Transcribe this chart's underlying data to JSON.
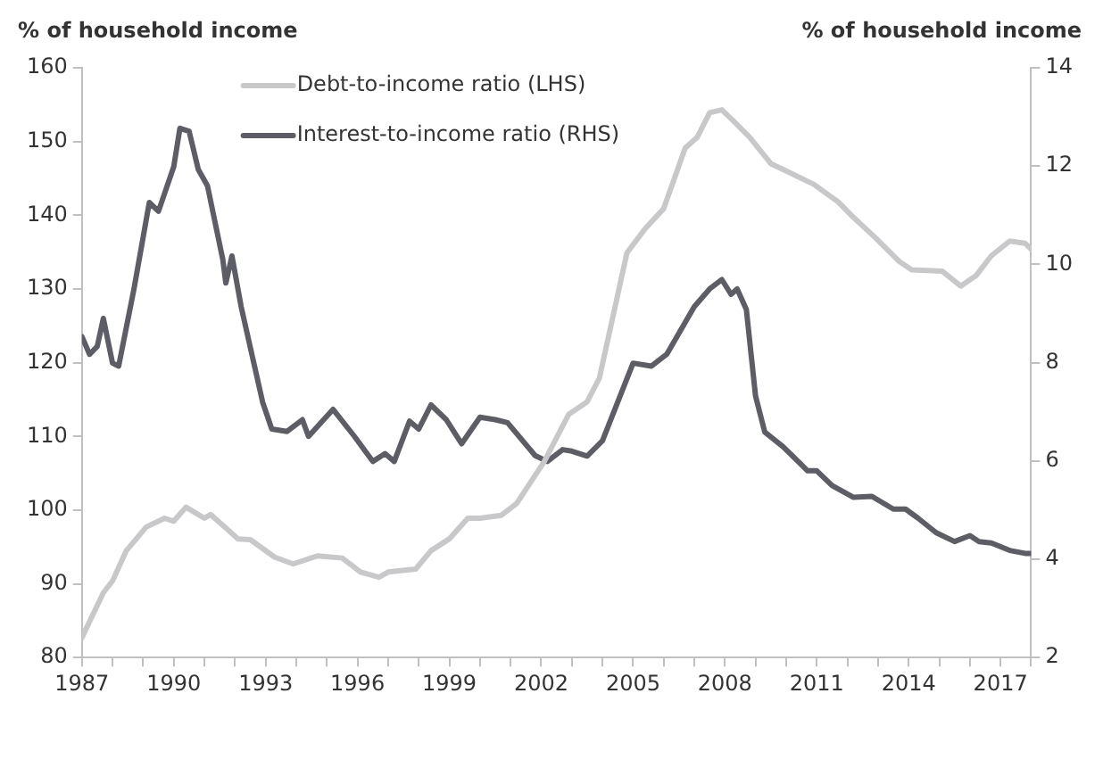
{
  "chart_data": {
    "type": "line",
    "ylabel": "% of household income",
    "y2label": "% of household income",
    "xlim": [
      1987,
      2018
    ],
    "xticks": [
      1987,
      {
        "value": 1988,
        "label": null
      },
      {
        "value": 1989,
        "label": null
      },
      1990,
      {
        "value": 1991,
        "label": null
      },
      {
        "value": 1992,
        "label": null
      },
      1993,
      {
        "value": 1994,
        "label": null
      },
      {
        "value": 1995,
        "label": null
      },
      1996,
      {
        "value": 1997,
        "label": null
      },
      {
        "value": 1998,
        "label": null
      },
      1999,
      {
        "value": 2000,
        "label": null
      },
      {
        "value": 2001,
        "label": null
      },
      2002,
      {
        "value": 2003,
        "label": null
      },
      {
        "value": 2004,
        "label": null
      },
      2005,
      {
        "value": 2006,
        "label": null
      },
      {
        "value": 2007,
        "label": null
      },
      2008,
      {
        "value": 2009,
        "label": null
      },
      {
        "value": 2010,
        "label": null
      },
      2011,
      {
        "value": 2012,
        "label": null
      },
      {
        "value": 2013,
        "label": null
      },
      2014,
      {
        "value": 2015,
        "label": null
      },
      {
        "value": 2016,
        "label": null
      },
      2017,
      {
        "value": 2018,
        "label": null
      }
    ],
    "ylim": [
      80,
      160
    ],
    "yticks": [
      80,
      90,
      100,
      110,
      120,
      130,
      140,
      150,
      160
    ],
    "y2lim": [
      2,
      14
    ],
    "y2ticks": [
      2,
      4,
      6,
      8,
      10,
      12,
      14
    ],
    "grid": false,
    "legend": "top",
    "marker": "none",
    "line_style": "solid",
    "series": [
      {
        "name": "Debt-to-income ratio (LHS)",
        "color": "#c8c8ca",
        "x": [
          1987.0,
          1987.7,
          1988.0,
          1988.45,
          1989.1,
          1989.7,
          1990.0,
          1990.4,
          1991.0,
          1991.2,
          1992.1,
          1992.5,
          1993.3,
          1993.9,
          1994.7,
          1995.5,
          1996.1,
          1996.7,
          1997.0,
          1997.9,
          1998.4,
          1999.0,
          1999.6,
          2000.0,
          2000.7,
          2001.2,
          2002.1,
          2002.9,
          2003.5,
          2003.9,
          2004.8,
          2005.4,
          2006.0,
          2006.7,
          2007.1,
          2007.5,
          2007.9,
          2008.3,
          2008.8,
          2009.5,
          2009.9,
          2010.9,
          2011.7,
          2012.2,
          2012.9,
          2013.7,
          2014.1,
          2015.1,
          2015.7,
          2016.2,
          2016.7,
          2017.3,
          2017.8,
          2018.0
        ],
        "values": [
          82.7,
          88.8,
          90.4,
          94.5,
          97.7,
          98.9,
          98.5,
          100.4,
          98.9,
          99.4,
          96.1,
          96,
          93.6,
          92.7,
          93.8,
          93.5,
          91.6,
          90.9,
          91.6,
          92,
          94.5,
          96.1,
          98.9,
          98.9,
          99.3,
          100.9,
          106.6,
          113,
          114.7,
          117.9,
          134.9,
          138.2,
          140.9,
          149.1,
          150.6,
          153.9,
          154.3,
          152.7,
          150.6,
          147,
          146.2,
          144.2,
          141.8,
          139.7,
          137,
          133.7,
          132.6,
          132.4,
          130.4,
          131.8,
          134.5,
          136.5,
          136.2,
          135.4
        ]
      },
      {
        "name": "Interest-to-income ratio (RHS)",
        "color": "#5d5d66",
        "axis": "y2",
        "x": [
          1987.0,
          1987.25,
          1987.5,
          1987.7,
          1988.0,
          1988.2,
          1988.7,
          1989.2,
          1989.5,
          1990.0,
          1990.2,
          1990.5,
          1990.8,
          1991.1,
          1991.6,
          1991.7,
          1991.9,
          1992.2,
          1992.9,
          1993.2,
          1993.7,
          1994.2,
          1994.4,
          1995.2,
          1995.9,
          1996.5,
          1996.9,
          1997.2,
          1997.7,
          1998.0,
          1998.4,
          1998.9,
          1999.4,
          2000.0,
          2000.5,
          2000.9,
          2001.8,
          2002.2,
          2002.7,
          2003.0,
          2003.5,
          2004.0,
          2005.0,
          2005.6,
          2006.1,
          2007.0,
          2007.5,
          2007.9,
          2008.2,
          2008.4,
          2008.7,
          2009.0,
          2009.3,
          2009.9,
          2010.7,
          2011.0,
          2011.5,
          2012.2,
          2012.8,
          2013.5,
          2013.9,
          2014.3,
          2014.9,
          2015.5,
          2016.0,
          2016.3,
          2016.7,
          2017.3,
          2017.8,
          2018.0
        ],
        "values": [
          8.53,
          8.17,
          8.33,
          8.9,
          7.99,
          7.93,
          9.5,
          11.26,
          11.08,
          11.99,
          12.77,
          12.71,
          11.93,
          11.6,
          10.1,
          9.62,
          10.17,
          9.14,
          7.2,
          6.65,
          6.6,
          6.84,
          6.5,
          7.05,
          6.5,
          5.99,
          6.15,
          5.99,
          6.81,
          6.65,
          7.14,
          6.84,
          6.35,
          6.89,
          6.84,
          6.78,
          6.11,
          5.99,
          6.23,
          6.2,
          6.1,
          6.41,
          7.99,
          7.93,
          8.17,
          9.14,
          9.5,
          9.69,
          9.39,
          9.5,
          9.08,
          7.32,
          6.59,
          6.29,
          5.8,
          5.8,
          5.5,
          5.26,
          5.28,
          5.02,
          5.02,
          4.84,
          4.54,
          4.36,
          4.48,
          4.36,
          4.33,
          4.18,
          4.12,
          4.12
        ]
      }
    ]
  }
}
